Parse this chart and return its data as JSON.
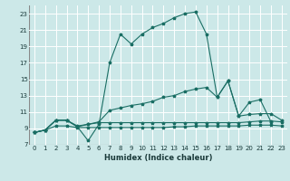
{
  "xlabel": "Humidex (Indice chaleur)",
  "bg_color": "#cce8e8",
  "grid_color": "#ffffff",
  "line_color": "#1a6e64",
  "xlim": [
    -0.5,
    23.5
  ],
  "ylim": [
    7,
    24
  ],
  "xticks": [
    0,
    1,
    2,
    3,
    4,
    5,
    6,
    7,
    8,
    9,
    10,
    11,
    12,
    13,
    14,
    15,
    16,
    17,
    18,
    19,
    20,
    21,
    22,
    23
  ],
  "yticks": [
    7,
    9,
    11,
    13,
    15,
    17,
    19,
    21,
    23
  ],
  "line1_x": [
    0,
    1,
    2,
    3,
    4,
    5,
    6,
    7,
    8,
    9,
    10,
    11,
    12,
    13,
    14,
    15,
    16,
    17,
    18,
    19,
    20,
    21,
    22
  ],
  "line1_y": [
    8.5,
    8.8,
    10.0,
    10.0,
    9.2,
    7.5,
    9.5,
    17.0,
    20.5,
    19.3,
    20.5,
    21.3,
    21.8,
    22.5,
    23.0,
    23.2,
    20.5,
    12.8,
    14.8,
    10.5,
    12.2,
    12.5,
    9.8
  ],
  "line2_x": [
    0,
    1,
    2,
    3,
    4,
    5,
    6,
    7,
    8,
    9,
    10,
    11,
    12,
    13,
    14,
    15,
    16,
    17,
    18,
    19,
    20,
    21,
    22,
    23
  ],
  "line2_y": [
    8.5,
    8.8,
    10.0,
    10.0,
    9.2,
    9.5,
    9.8,
    11.2,
    11.5,
    11.8,
    12.0,
    12.3,
    12.8,
    13.0,
    13.5,
    13.8,
    14.0,
    12.8,
    14.8,
    10.5,
    10.7,
    10.8,
    10.8,
    10.0
  ],
  "line3_x": [
    0,
    1,
    2,
    3,
    4,
    5,
    6,
    7,
    8,
    9,
    10,
    11,
    12,
    13,
    14,
    15,
    16,
    17,
    18,
    19,
    20,
    21,
    22,
    23
  ],
  "line3_y": [
    8.5,
    8.8,
    10.0,
    10.0,
    9.3,
    9.5,
    9.7,
    9.7,
    9.7,
    9.7,
    9.7,
    9.7,
    9.7,
    9.7,
    9.7,
    9.7,
    9.7,
    9.7,
    9.7,
    9.7,
    9.8,
    9.9,
    9.9,
    9.8
  ],
  "line4_x": [
    0,
    1,
    2,
    3,
    4,
    5,
    6,
    7,
    8,
    9,
    10,
    11,
    12,
    13,
    14,
    15,
    16,
    17,
    18,
    19,
    20,
    21,
    22,
    23
  ],
  "line4_y": [
    8.5,
    8.8,
    9.3,
    9.3,
    9.1,
    9.1,
    9.1,
    9.1,
    9.1,
    9.1,
    9.1,
    9.1,
    9.1,
    9.2,
    9.2,
    9.3,
    9.3,
    9.3,
    9.3,
    9.3,
    9.4,
    9.4,
    9.4,
    9.3
  ]
}
